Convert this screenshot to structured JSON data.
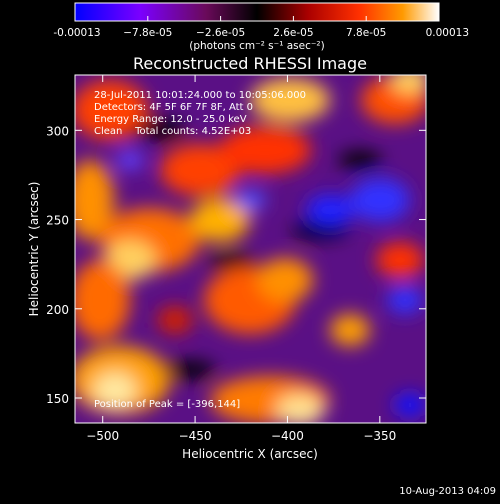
{
  "chart_data": {
    "type": "heatmap",
    "title": "Reconstructed RHESSI Image",
    "xlabel": "Heliocentric X (arcsec)",
    "ylabel": "Heliocentric Y (arcsec)",
    "xlim": [
      -515,
      -325
    ],
    "ylim": [
      136,
      331
    ],
    "x_ticks": [
      -500,
      -450,
      -400,
      -350
    ],
    "y_ticks": [
      150,
      200,
      250,
      300
    ],
    "x_tick_labels": [
      "−500",
      "−450",
      "−400",
      "−350"
    ],
    "y_tick_labels": [
      "150",
      "200",
      "250",
      "300"
    ],
    "colorbar": {
      "range": [
        -0.00013,
        0.00013
      ],
      "tick_labels": [
        "-0.00013",
        "−7.8e-05",
        "−2.6e-05",
        "2.6e-05",
        "7.8e-05",
        "0.00013"
      ],
      "unit_label": "(photons cm⁻² s⁻¹ asec⁻²)",
      "colors": [
        "#0000ff",
        "#7b00ff",
        "#6a0a5a",
        "#000000",
        "#aa0000",
        "#ff3000",
        "#ff9a00",
        "#ffffff"
      ]
    },
    "annotations": [
      "28-Jul-2011 10:01:24.000 to 10:05:06.000",
      "Detectors: 4F 5F 6F 7F 8F, Att 0",
      "Energy Range: 12.0 - 25.0 keV",
      "Clean    Total counts: 4.52E+03"
    ],
    "peak_label": "Position of Peak = [-396,144]",
    "peak": [
      -396,
      144
    ]
  },
  "footer": {
    "timestamp": "10-Aug-2013 04:09"
  }
}
